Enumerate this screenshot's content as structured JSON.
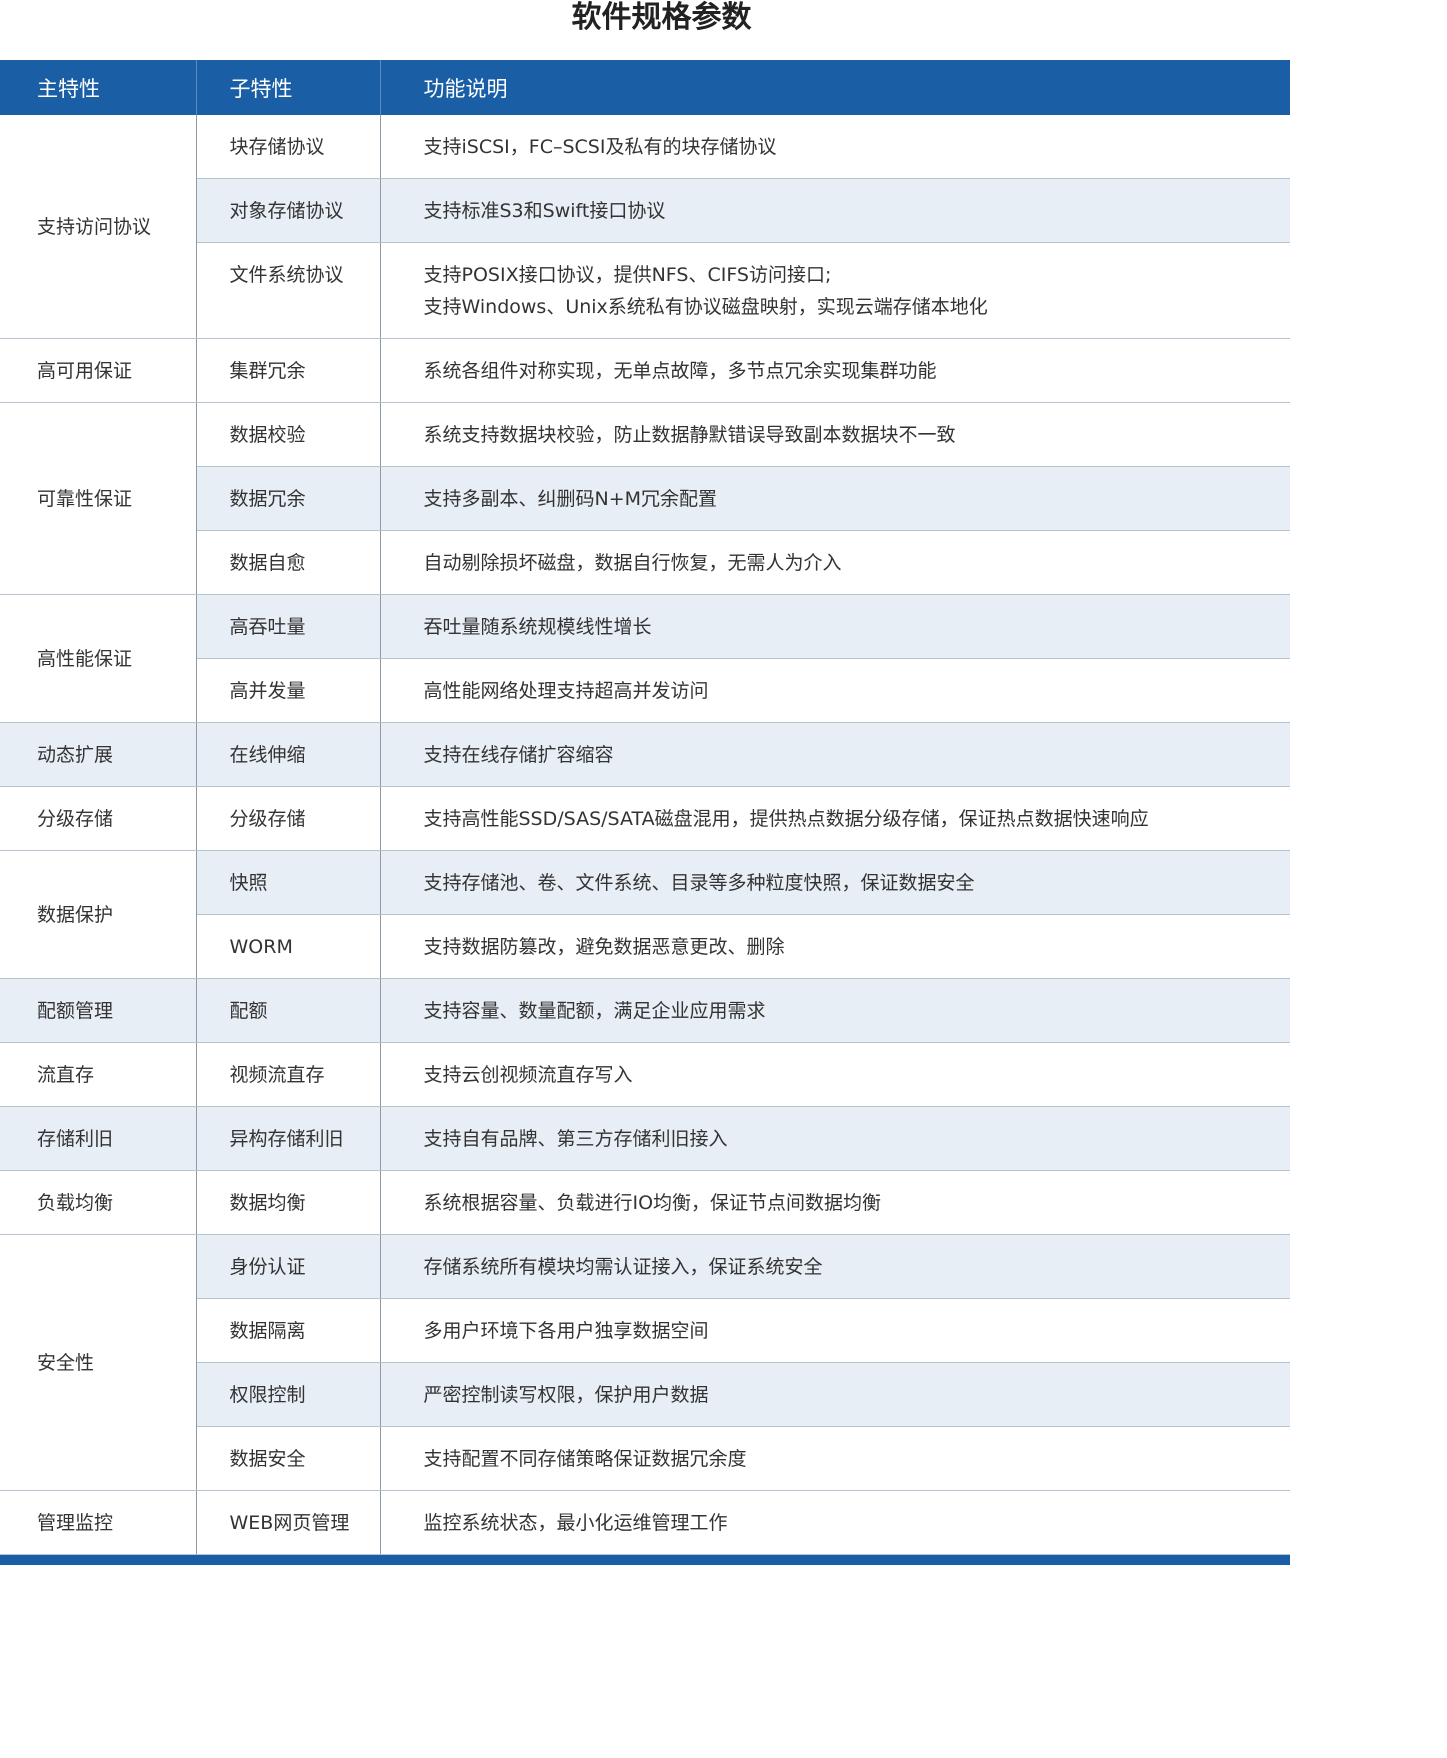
{
  "title": "软件规格参数",
  "table": {
    "headers": [
      "主特性",
      "子特性",
      "功能说明"
    ],
    "groups": [
      {
        "feature": "支持访问协议",
        "rows": [
          {
            "sub": "块存储协议",
            "desc": [
              "支持iSCSI，FC–SCSI及私有的块存储协议"
            ]
          },
          {
            "sub": "对象存储协议",
            "desc": [
              "支持标准S3和Swift接口协议"
            ]
          },
          {
            "sub": "文件系统协议",
            "desc": [
              "支持POSIX接口协议，提供NFS、CIFS访问接口;",
              "支持Windows、Unix系统私有协议磁盘映射，实现云端存储本地化"
            ]
          }
        ]
      },
      {
        "feature": "高可用保证",
        "rows": [
          {
            "sub": "集群冗余",
            "desc": [
              "系统各组件对称实现，无单点故障，多节点冗余实现集群功能"
            ]
          }
        ]
      },
      {
        "feature": "可靠性保证",
        "rows": [
          {
            "sub": "数据校验",
            "desc": [
              "系统支持数据块校验，防止数据静默错误导致副本数据块不一致"
            ]
          },
          {
            "sub": "数据冗余",
            "desc": [
              "支持多副本、纠删码N+M冗余配置"
            ]
          },
          {
            "sub": "数据自愈",
            "desc": [
              "自动剔除损坏磁盘，数据自行恢复，无需人为介入"
            ]
          }
        ]
      },
      {
        "feature": "高性能保证",
        "rows": [
          {
            "sub": "高吞吐量",
            "desc": [
              "吞吐量随系统规模线性增长"
            ]
          },
          {
            "sub": "高并发量",
            "desc": [
              "高性能网络处理支持超高并发访问"
            ]
          }
        ]
      },
      {
        "feature": "动态扩展",
        "rows": [
          {
            "sub": "在线伸缩",
            "desc": [
              "支持在线存储扩容缩容"
            ]
          }
        ]
      },
      {
        "feature": "分级存储",
        "rows": [
          {
            "sub": "分级存储",
            "desc": [
              "支持高性能SSD/SAS/SATA磁盘混用，提供热点数据分级存储，保证热点数据快速响应"
            ]
          }
        ]
      },
      {
        "feature": "数据保护",
        "rows": [
          {
            "sub": "快照",
            "desc": [
              "支持存储池、卷、文件系统、目录等多种粒度快照，保证数据安全"
            ]
          },
          {
            "sub": "WORM",
            "desc": [
              "支持数据防篡改，避免数据恶意更改、删除"
            ]
          }
        ]
      },
      {
        "feature": "配额管理",
        "rows": [
          {
            "sub": "配额",
            "desc": [
              "支持容量、数量配额，满足企业应用需求"
            ]
          }
        ]
      },
      {
        "feature": "流直存",
        "rows": [
          {
            "sub": "视频流直存",
            "desc": [
              "支持云创视频流直存写入"
            ]
          }
        ]
      },
      {
        "feature": "存储利旧",
        "rows": [
          {
            "sub": "异构存储利旧",
            "desc": [
              "支持自有品牌、第三方存储利旧接入"
            ]
          }
        ]
      },
      {
        "feature": "负载均衡",
        "rows": [
          {
            "sub": "数据均衡",
            "desc": [
              "系统根据容量、负载进行IO均衡，保证节点间数据均衡"
            ]
          }
        ]
      },
      {
        "feature": "安全性",
        "rows": [
          {
            "sub": "身份认证",
            "desc": [
              "存储系统所有模块均需认证接入，保证系统安全"
            ]
          },
          {
            "sub": "数据隔离",
            "desc": [
              "多用户环境下各用户独享数据空间"
            ]
          },
          {
            "sub": "权限控制",
            "desc": [
              "严密控制读写权限，保护用户数据"
            ]
          },
          {
            "sub": "数据安全",
            "desc": [
              "支持配置不同存储策略保证数据冗余度"
            ]
          }
        ]
      },
      {
        "feature": "管理监控",
        "rows": [
          {
            "sub": "WEB网页管理",
            "desc": [
              "监控系统状态，最小化运维管理工作"
            ]
          }
        ]
      }
    ]
  }
}
